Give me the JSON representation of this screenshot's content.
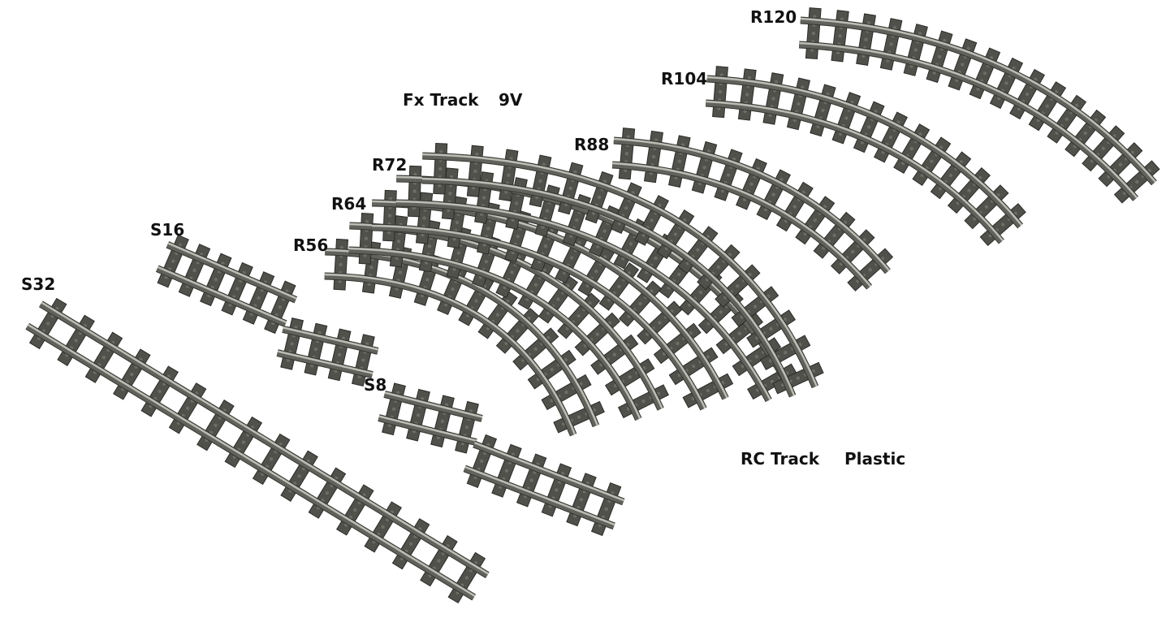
{
  "labels": {
    "s32": "S32",
    "s16": "S16",
    "s8": "S8",
    "r56": "R56",
    "r64": "R64",
    "r72": "R72",
    "r88": "R88",
    "r104": "R104",
    "r120": "R120"
  },
  "captions": {
    "fx_track": "Fx Track",
    "nine_v": "9V",
    "rc_track": "RC Track",
    "plastic": "Plastic"
  },
  "colors": {
    "rail": "#60625b",
    "rail_top": "#bcbdb5",
    "tie": "#4f514a",
    "background": "#ffffff"
  }
}
